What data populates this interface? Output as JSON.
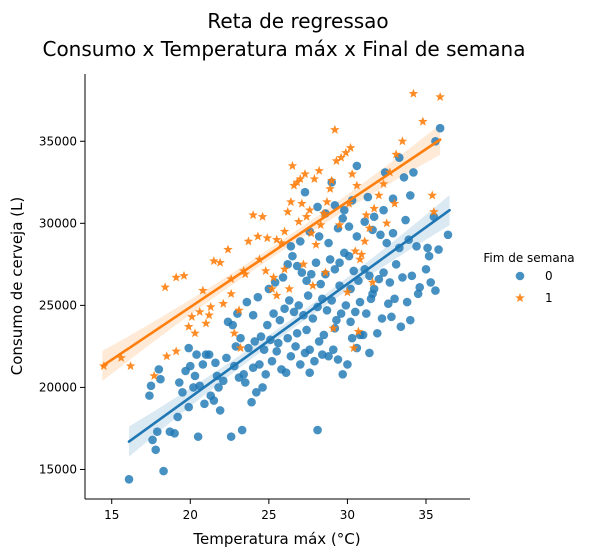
{
  "chart_data": {
    "type": "scatter",
    "title_lines": [
      "Reta de regressao",
      "Consumo x Temperatura máx x Final de semana"
    ],
    "xlabel": "Temperatura máx (°C)",
    "ylabel": "Consumo de cerveja (L)",
    "xlim": [
      13.3,
      37.8
    ],
    "ylim": [
      13200,
      39100
    ],
    "x_ticks": [
      15,
      20,
      25,
      30,
      35
    ],
    "y_ticks": [
      15000,
      20000,
      25000,
      30000,
      35000
    ],
    "grid": false,
    "legend": {
      "title": "Fim de semana",
      "placement": "right"
    },
    "series": [
      {
        "name": "0",
        "marker": "circle",
        "color": "#1f77b4",
        "regression": {
          "x": [
            16.1,
            36.5
          ],
          "y": [
            16700,
            30800
          ]
        },
        "points": [
          [
            16.1,
            14400
          ],
          [
            18.3,
            14900
          ],
          [
            17.4,
            19500
          ],
          [
            17.6,
            16800
          ],
          [
            17.8,
            16200
          ],
          [
            17.9,
            17300
          ],
          [
            18.1,
            20500
          ],
          [
            17.5,
            20100
          ],
          [
            18.0,
            21100
          ],
          [
            18.7,
            17300
          ],
          [
            19.0,
            17200
          ],
          [
            19.2,
            18200
          ],
          [
            19.5,
            19700
          ],
          [
            19.9,
            18800
          ],
          [
            19.3,
            20300
          ],
          [
            19.7,
            21000
          ],
          [
            20.0,
            21300
          ],
          [
            20.3,
            20700
          ],
          [
            20.6,
            20100
          ],
          [
            20.9,
            19000
          ],
          [
            21.3,
            19500
          ],
          [
            21.5,
            19200
          ],
          [
            21.8,
            20000
          ],
          [
            22.1,
            20400
          ],
          [
            20.4,
            22000
          ],
          [
            21.0,
            22000
          ],
          [
            21.6,
            21500
          ],
          [
            22.3,
            21800
          ],
          [
            22.8,
            21300
          ],
          [
            23.1,
            20600
          ],
          [
            23.5,
            20300
          ],
          [
            23.9,
            19100
          ],
          [
            24.2,
            19700
          ],
          [
            24.6,
            20000
          ],
          [
            20.5,
            17000
          ],
          [
            21.9,
            18600
          ],
          [
            22.6,
            17000
          ],
          [
            23.3,
            17400
          ],
          [
            23.7,
            22400
          ],
          [
            24.1,
            22800
          ],
          [
            24.4,
            21400
          ],
          [
            24.8,
            20800
          ],
          [
            25.2,
            21600
          ],
          [
            25.5,
            22200
          ],
          [
            25.8,
            21100
          ],
          [
            26.1,
            20900
          ],
          [
            26.4,
            21900
          ],
          [
            26.7,
            22500
          ],
          [
            27.0,
            21400
          ],
          [
            27.3,
            22100
          ],
          [
            27.6,
            20900
          ],
          [
            27.9,
            21600
          ],
          [
            28.2,
            22800
          ],
          [
            28.5,
            23200
          ],
          [
            28.8,
            21900
          ],
          [
            29.1,
            22300
          ],
          [
            29.4,
            21700
          ],
          [
            29.7,
            20800
          ],
          [
            30.0,
            21400
          ],
          [
            30.3,
            23000
          ],
          [
            30.6,
            22400
          ],
          [
            31.0,
            23200
          ],
          [
            24.5,
            23100
          ],
          [
            24.9,
            23800
          ],
          [
            25.3,
            24500
          ],
          [
            25.7,
            24100
          ],
          [
            26.0,
            24800
          ],
          [
            26.3,
            25300
          ],
          [
            26.6,
            24600
          ],
          [
            26.9,
            25000
          ],
          [
            27.2,
            24400
          ],
          [
            27.5,
            25600
          ],
          [
            27.8,
            24200
          ],
          [
            28.1,
            24900
          ],
          [
            28.4,
            25400
          ],
          [
            28.7,
            24700
          ],
          [
            29.0,
            25300
          ],
          [
            29.3,
            24100
          ],
          [
            29.6,
            24500
          ],
          [
            29.9,
            25000
          ],
          [
            30.2,
            24000
          ],
          [
            30.5,
            24600
          ],
          [
            30.8,
            25200
          ],
          [
            31.2,
            24500
          ],
          [
            31.5,
            25400
          ],
          [
            31.9,
            23300
          ],
          [
            32.2,
            24200
          ],
          [
            32.6,
            25100
          ],
          [
            33.0,
            25400
          ],
          [
            33.4,
            23700
          ],
          [
            34.0,
            24100
          ],
          [
            22.7,
            23800
          ],
          [
            23.0,
            24500
          ],
          [
            23.6,
            25200
          ],
          [
            24.0,
            24400
          ],
          [
            24.3,
            25500
          ],
          [
            25.0,
            26000
          ],
          [
            25.4,
            26400
          ],
          [
            25.9,
            26700
          ],
          [
            26.2,
            27500
          ],
          [
            26.5,
            28000
          ],
          [
            26.8,
            27400
          ],
          [
            27.1,
            27000
          ],
          [
            27.4,
            26500
          ],
          [
            27.7,
            26900
          ],
          [
            28.0,
            27600
          ],
          [
            28.3,
            26300
          ],
          [
            28.6,
            26900
          ],
          [
            28.9,
            27800
          ],
          [
            29.2,
            27200
          ],
          [
            29.5,
            27600
          ],
          [
            29.8,
            28200
          ],
          [
            30.1,
            28000
          ],
          [
            30.4,
            27100
          ],
          [
            30.7,
            26500
          ],
          [
            31.1,
            27200
          ],
          [
            31.4,
            26800
          ],
          [
            31.7,
            26000
          ],
          [
            32.0,
            26600
          ],
          [
            32.3,
            27000
          ],
          [
            32.7,
            26400
          ],
          [
            33.1,
            27500
          ],
          [
            33.5,
            26700
          ],
          [
            34.1,
            26800
          ],
          [
            34.6,
            26100
          ],
          [
            35.0,
            27200
          ],
          [
            35.3,
            26400
          ],
          [
            35.6,
            25900
          ],
          [
            36.4,
            29300
          ],
          [
            26.4,
            28600
          ],
          [
            27.0,
            28900
          ],
          [
            27.6,
            29500
          ],
          [
            28.2,
            29200
          ],
          [
            28.8,
            28800
          ],
          [
            29.4,
            29700
          ],
          [
            29.7,
            30300
          ],
          [
            30.1,
            29800
          ],
          [
            30.6,
            29200
          ],
          [
            31.1,
            30100
          ],
          [
            31.6,
            29600
          ],
          [
            32.1,
            29300
          ],
          [
            32.5,
            28800
          ],
          [
            32.9,
            29400
          ],
          [
            33.3,
            28500
          ],
          [
            33.9,
            29000
          ],
          [
            34.4,
            28600
          ],
          [
            35.2,
            28000
          ],
          [
            35.5,
            30400
          ],
          [
            28.1,
            31000
          ],
          [
            28.6,
            30600
          ],
          [
            29.2,
            31100
          ],
          [
            29.8,
            30800
          ],
          [
            30.3,
            31400
          ],
          [
            31.3,
            31600
          ],
          [
            31.7,
            30400
          ],
          [
            32.3,
            30800
          ],
          [
            32.9,
            31500
          ],
          [
            33.7,
            30200
          ],
          [
            34.0,
            31700
          ],
          [
            34.2,
            33100
          ],
          [
            33.3,
            34000
          ],
          [
            35.6,
            35000
          ],
          [
            35.9,
            35800
          ],
          [
            35.8,
            28400
          ],
          [
            35.1,
            28500
          ],
          [
            27.3,
            31900
          ],
          [
            29.0,
            32500
          ],
          [
            30.6,
            33500
          ],
          [
            32.4,
            33100
          ],
          [
            33.6,
            32800
          ],
          [
            22.4,
            24000
          ],
          [
            23.2,
            23000
          ],
          [
            21.2,
            22000
          ],
          [
            19.9,
            22400
          ],
          [
            28.1,
            17400
          ],
          [
            29.2,
            23600
          ],
          [
            30.8,
            23200
          ],
          [
            31.4,
            22100
          ],
          [
            27.4,
            23500
          ],
          [
            26.8,
            23300
          ],
          [
            24.7,
            22300
          ],
          [
            25.1,
            22900
          ],
          [
            24.0,
            21200
          ],
          [
            22.9,
            22500
          ],
          [
            21.7,
            20700
          ],
          [
            20.8,
            21400
          ],
          [
            20.2,
            20000
          ],
          [
            27.6,
            22300
          ],
          [
            28.4,
            22000
          ],
          [
            29.5,
            26200
          ],
          [
            30.2,
            26000
          ],
          [
            31.6,
            25700
          ],
          [
            32.8,
            24300
          ],
          [
            33.8,
            25200
          ],
          [
            34.5,
            25700
          ],
          [
            26.2,
            23000
          ],
          [
            25.6,
            22700
          ],
          [
            23.4,
            20800
          ]
        ]
      },
      {
        "name": "1",
        "marker": "star",
        "color": "#ff7f0e",
        "regression": {
          "x": [
            14.4,
            35.9
          ],
          "y": [
            21300,
            35100
          ]
        },
        "points": [
          [
            14.5,
            21300
          ],
          [
            15.6,
            21800
          ],
          [
            16.2,
            21300
          ],
          [
            17.7,
            20700
          ],
          [
            18.5,
            21900
          ],
          [
            19.1,
            22200
          ],
          [
            18.4,
            26100
          ],
          [
            19.1,
            26700
          ],
          [
            19.6,
            26800
          ],
          [
            20.1,
            24300
          ],
          [
            20.6,
            24600
          ],
          [
            21.3,
            24900
          ],
          [
            20.3,
            23300
          ],
          [
            21.0,
            23900
          ],
          [
            21.5,
            27700
          ],
          [
            21.9,
            27600
          ],
          [
            22.4,
            28400
          ],
          [
            22.1,
            25100
          ],
          [
            22.6,
            25700
          ],
          [
            23.1,
            24700
          ],
          [
            22.8,
            23300
          ],
          [
            23.2,
            22400
          ],
          [
            23.7,
            28900
          ],
          [
            24.0,
            30500
          ],
          [
            24.3,
            29200
          ],
          [
            24.6,
            30400
          ],
          [
            24.9,
            29100
          ],
          [
            25.2,
            26000
          ],
          [
            25.5,
            25600
          ],
          [
            25.8,
            28800
          ],
          [
            26.0,
            29500
          ],
          [
            26.2,
            30700
          ],
          [
            26.4,
            31300
          ],
          [
            26.6,
            32300
          ],
          [
            26.5,
            33500
          ],
          [
            26.8,
            32500
          ],
          [
            27.0,
            32700
          ],
          [
            27.3,
            33000
          ],
          [
            27.1,
            31200
          ],
          [
            27.4,
            30400
          ],
          [
            27.7,
            29400
          ],
          [
            28.0,
            28700
          ],
          [
            28.3,
            29900
          ],
          [
            28.5,
            30600
          ],
          [
            28.7,
            31300
          ],
          [
            28.9,
            32100
          ],
          [
            29.0,
            32600
          ],
          [
            29.3,
            33800
          ],
          [
            29.6,
            34000
          ],
          [
            29.9,
            34300
          ],
          [
            30.2,
            34600
          ],
          [
            30.3,
            33000
          ],
          [
            29.5,
            29900
          ],
          [
            30.5,
            28300
          ],
          [
            30.8,
            27800
          ],
          [
            31.1,
            28900
          ],
          [
            31.4,
            29700
          ],
          [
            31.7,
            30900
          ],
          [
            32.0,
            31700
          ],
          [
            32.3,
            32400
          ],
          [
            32.7,
            33100
          ],
          [
            33.1,
            34200
          ],
          [
            33.5,
            35000
          ],
          [
            34.2,
            37900
          ],
          [
            35.9,
            37700
          ],
          [
            34.8,
            36200
          ],
          [
            35.4,
            31700
          ],
          [
            35.5,
            30700
          ],
          [
            30.9,
            28100
          ],
          [
            31.6,
            26400
          ],
          [
            27.8,
            26200
          ],
          [
            26.0,
            27200
          ],
          [
            25.3,
            26700
          ],
          [
            24.4,
            27800
          ],
          [
            23.5,
            26900
          ],
          [
            27.2,
            27500
          ],
          [
            28.6,
            27000
          ],
          [
            30.0,
            25800
          ],
          [
            29.1,
            23600
          ],
          [
            30.4,
            22400
          ],
          [
            30.7,
            23400
          ],
          [
            28.2,
            33200
          ],
          [
            27.9,
            32700
          ],
          [
            29.2,
            35700
          ],
          [
            30.6,
            32300
          ],
          [
            26.9,
            30100
          ],
          [
            27.6,
            30800
          ],
          [
            20.8,
            25900
          ],
          [
            19.9,
            23700
          ],
          [
            21.2,
            24400
          ],
          [
            24.8,
            27100
          ],
          [
            23.4,
            27100
          ],
          [
            22.6,
            26600
          ],
          [
            25.5,
            29000
          ],
          [
            26.3,
            26000
          ],
          [
            30.1,
            31200
          ],
          [
            31.2,
            30500
          ],
          [
            32.5,
            30000
          ],
          [
            33.0,
            31200
          ]
        ]
      }
    ]
  }
}
